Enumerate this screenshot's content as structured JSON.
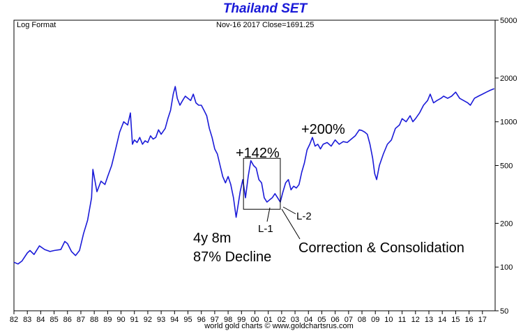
{
  "chart_data": {
    "type": "line",
    "title": "Thailand SET",
    "scale_label": "Log Format",
    "last_quote": "Nov-16  2017   Close=1691.25",
    "credit": "world gold charts © www.goldchartsrus.com",
    "y_scale": "log",
    "ylim": [
      50,
      5000
    ],
    "y_ticks": [
      {
        "value": 50,
        "label": "50"
      },
      {
        "value": 100,
        "label": "100"
      },
      {
        "value": 200,
        "label": "200"
      },
      {
        "value": 500,
        "label": "500"
      },
      {
        "value": 1000,
        "label": "1000"
      },
      {
        "value": 2000,
        "label": "2000"
      },
      {
        "value": 5000,
        "label": "5000"
      }
    ],
    "xlim": [
      1982.0,
      2017.95
    ],
    "x_ticks": [
      {
        "value": 1982,
        "label": "82"
      },
      {
        "value": 1983,
        "label": "83"
      },
      {
        "value": 1984,
        "label": "84"
      },
      {
        "value": 1985,
        "label": "85"
      },
      {
        "value": 1986,
        "label": "86"
      },
      {
        "value": 1987,
        "label": "87"
      },
      {
        "value": 1988,
        "label": "88"
      },
      {
        "value": 1989,
        "label": "89"
      },
      {
        "value": 1990,
        "label": "90"
      },
      {
        "value": 1991,
        "label": "91"
      },
      {
        "value": 1992,
        "label": "92"
      },
      {
        "value": 1993,
        "label": "93"
      },
      {
        "value": 1994,
        "label": "94"
      },
      {
        "value": 1995,
        "label": "95"
      },
      {
        "value": 1996,
        "label": "96"
      },
      {
        "value": 1997,
        "label": "97"
      },
      {
        "value": 1998,
        "label": "98"
      },
      {
        "value": 1999,
        "label": "99"
      },
      {
        "value": 2000,
        "label": "00"
      },
      {
        "value": 2001,
        "label": "01"
      },
      {
        "value": 2002,
        "label": "02"
      },
      {
        "value": 2003,
        "label": "03"
      },
      {
        "value": 2004,
        "label": "04"
      },
      {
        "value": 2005,
        "label": "05"
      },
      {
        "value": 2006,
        "label": "06"
      },
      {
        "value": 2007,
        "label": "07"
      },
      {
        "value": 2008,
        "label": "08"
      },
      {
        "value": 2009,
        "label": "09"
      },
      {
        "value": 2010,
        "label": "10"
      },
      {
        "value": 2011,
        "label": "11"
      },
      {
        "value": 2012,
        "label": "12"
      },
      {
        "value": 2013,
        "label": "13"
      },
      {
        "value": 2014,
        "label": "14"
      },
      {
        "value": 2015,
        "label": "15"
      },
      {
        "value": 2016,
        "label": "16"
      },
      {
        "value": 2017,
        "label": "17"
      }
    ],
    "grid": false,
    "series": [
      {
        "color": "#1a1ad8",
        "x": [
          1982.0,
          1982.3,
          1982.6,
          1983.0,
          1983.2,
          1983.5,
          1983.9,
          1984.3,
          1984.7,
          1985.0,
          1985.5,
          1985.8,
          1986.0,
          1986.3,
          1986.6,
          1986.9,
          1987.2,
          1987.5,
          1987.8,
          1987.9,
          1988.2,
          1988.5,
          1988.8,
          1989.0,
          1989.3,
          1989.6,
          1989.9,
          1990.2,
          1990.5,
          1990.7,
          1990.85,
          1991.0,
          1991.2,
          1991.4,
          1991.6,
          1991.8,
          1992.0,
          1992.2,
          1992.4,
          1992.6,
          1992.8,
          1993.0,
          1993.3,
          1993.5,
          1993.7,
          1993.9,
          1994.05,
          1994.2,
          1994.4,
          1994.6,
          1994.8,
          1995.0,
          1995.2,
          1995.4,
          1995.6,
          1995.8,
          1996.0,
          1996.2,
          1996.4,
          1996.6,
          1996.8,
          1997.0,
          1997.2,
          1997.4,
          1997.6,
          1997.8,
          1998.0,
          1998.2,
          1998.4,
          1998.6,
          1998.7,
          1998.9,
          1999.1,
          1999.3,
          1999.5,
          1999.7,
          1999.9,
          2000.1,
          2000.3,
          2000.5,
          2000.7,
          2000.9,
          2001.1,
          2001.3,
          2001.5,
          2001.7,
          2001.9,
          2002.1,
          2002.3,
          2002.5,
          2002.7,
          2002.9,
          2003.1,
          2003.3,
          2003.5,
          2003.7,
          2003.9,
          2004.1,
          2004.3,
          2004.5,
          2004.7,
          2004.9,
          2005.1,
          2005.4,
          2005.7,
          2006.0,
          2006.3,
          2006.6,
          2006.9,
          2007.2,
          2007.5,
          2007.8,
          2008.0,
          2008.2,
          2008.4,
          2008.6,
          2008.8,
          2008.95,
          2009.1,
          2009.3,
          2009.6,
          2009.9,
          2010.2,
          2010.5,
          2010.8,
          2011.0,
          2011.3,
          2011.6,
          2011.8,
          2012.0,
          2012.3,
          2012.6,
          2012.9,
          2013.1,
          2013.35,
          2013.6,
          2013.9,
          2014.1,
          2014.4,
          2014.7,
          2015.0,
          2015.3,
          2015.6,
          2015.9,
          2016.1,
          2016.4,
          2016.7,
          2017.0,
          2017.3,
          2017.6,
          2017.88
        ],
        "y": [
          108,
          105,
          110,
          125,
          130,
          122,
          140,
          132,
          128,
          130,
          132,
          150,
          145,
          128,
          120,
          130,
          170,
          210,
          300,
          470,
          330,
          390,
          370,
          420,
          500,
          650,
          850,
          1000,
          950,
          1150,
          700,
          750,
          720,
          780,
          700,
          740,
          720,
          800,
          760,
          780,
          880,
          820,
          900,
          1050,
          1200,
          1550,
          1750,
          1450,
          1300,
          1400,
          1500,
          1450,
          1400,
          1550,
          1350,
          1300,
          1300,
          1200,
          1100,
          900,
          780,
          650,
          600,
          500,
          420,
          380,
          420,
          370,
          300,
          220,
          250,
          330,
          400,
          300,
          420,
          540,
          500,
          480,
          400,
          380,
          300,
          280,
          290,
          300,
          320,
          300,
          280,
          330,
          380,
          400,
          340,
          360,
          350,
          370,
          450,
          520,
          640,
          700,
          780,
          680,
          700,
          650,
          700,
          720,
          680,
          750,
          700,
          730,
          720,
          760,
          800,
          880,
          870,
          850,
          820,
          700,
          560,
          440,
          400,
          500,
          600,
          700,
          750,
          900,
          950,
          1050,
          1000,
          1100,
          1000,
          1050,
          1150,
          1300,
          1400,
          1550,
          1350,
          1400,
          1450,
          1500,
          1450,
          1500,
          1600,
          1450,
          1400,
          1350,
          1300,
          1450,
          1500,
          1550,
          1600,
          1650,
          1691
        ]
      }
    ],
    "annotations": {
      "gain_1": "+142%",
      "gain_2": "+200%",
      "duration": "4y 8m",
      "decline": "87% Decline",
      "low_1": "L-1",
      "low_2": "L-2",
      "phase": "Correction & Consolidation"
    },
    "boxes": [
      {
        "x0": 1999.15,
        "x1": 2001.9,
        "y0": 250,
        "y1": 560
      }
    ]
  }
}
